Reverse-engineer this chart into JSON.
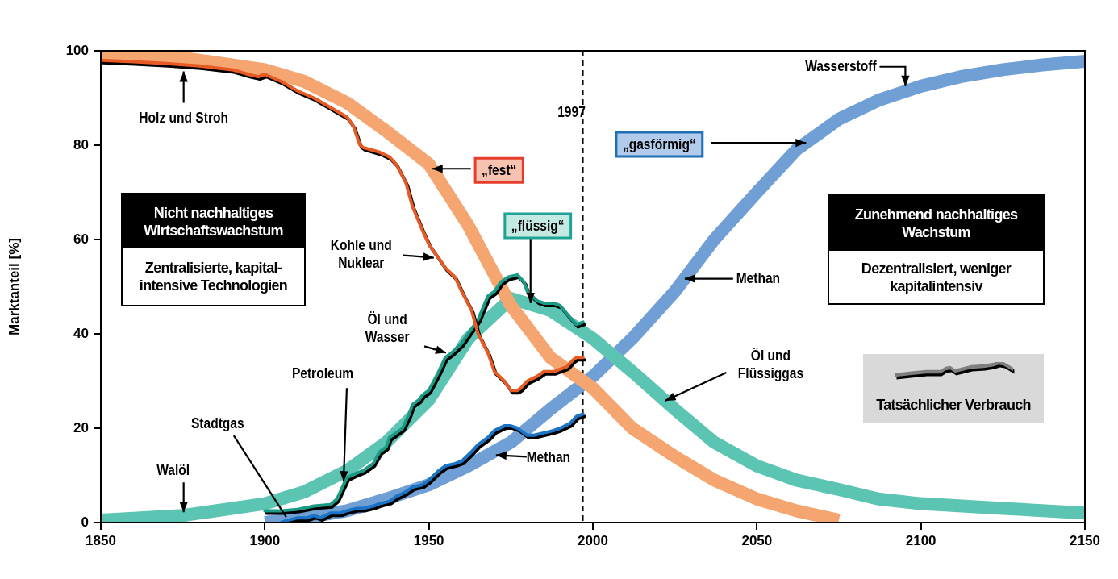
{
  "chart_data": {
    "type": "line",
    "ylabel": "Marktanteil [%]",
    "xlim": [
      1850,
      2150
    ],
    "ylim": [
      0,
      100
    ],
    "xticks": [
      1850,
      1900,
      1950,
      2000,
      2050,
      2100,
      2150
    ],
    "yticks": [
      0,
      20,
      40,
      60,
      80,
      100
    ],
    "series": [
      {
        "color": "#f5a570",
        "x": [
          1850,
          1875,
          1900,
          1912,
          1925,
          1937,
          1950,
          1962,
          1975,
          1987,
          2000,
          2012,
          2025,
          2037,
          2050,
          2062,
          2075
        ],
        "values": [
          99,
          98.5,
          96,
          93.5,
          89,
          83,
          76,
          63,
          46,
          35,
          28.5,
          20,
          14,
          9,
          5,
          2.5,
          0.5
        ]
      },
      {
        "color": "#5cc4b2",
        "x": [
          1850,
          1875,
          1900,
          1912,
          1925,
          1937,
          1950,
          1962,
          1975,
          1987,
          2000,
          2012,
          2025,
          2037,
          2050,
          2062,
          2075,
          2087,
          2100,
          2125,
          2150
        ],
        "values": [
          0.5,
          1.5,
          4,
          6.5,
          11,
          17,
          26,
          39,
          47.5,
          45,
          39,
          32,
          24,
          17,
          12,
          9,
          7,
          5,
          4,
          3,
          2
        ]
      },
      {
        "color": "#6f9fd5",
        "x": [
          1900,
          1912,
          1925,
          1937,
          1950,
          1962,
          1975,
          1987,
          2000,
          2012,
          2025,
          2037,
          2050,
          2062,
          2075,
          2087,
          2100,
          2112,
          2125,
          2137,
          2150
        ],
        "values": [
          0,
          1,
          2.5,
          5,
          8,
          12,
          17,
          24,
          31,
          39,
          49,
          60,
          70,
          79,
          85.5,
          89.5,
          92.5,
          94.5,
          96,
          97,
          97.8
        ]
      },
      {
        "color": "#e85a24",
        "x": [
          1850,
          1860,
          1870,
          1880,
          1890,
          1895,
          1898,
          1900,
          1905,
          1910,
          1915,
          1920,
          1925,
          1927,
          1929,
          1930,
          1935,
          1938,
          1940,
          1943,
          1945,
          1948,
          1950,
          1953,
          1955,
          1958,
          1960,
          1963,
          1965,
          1968,
          1970,
          1973,
          1975,
          1977,
          1978,
          1980,
          1983,
          1985,
          1988,
          1990,
          1992,
          1994,
          1995,
          1997
        ],
        "values": [
          98,
          97.7,
          97.3,
          96.8,
          96,
          95,
          94.5,
          95,
          93.5,
          91.5,
          90,
          88,
          86,
          84,
          80,
          79.5,
          78.5,
          77.5,
          76,
          72,
          67,
          62,
          59,
          56,
          54,
          52,
          49,
          45,
          40,
          36,
          32,
          30,
          28,
          28,
          28.5,
          30,
          31,
          32,
          32,
          32.5,
          33,
          34.5,
          35,
          35
        ]
      },
      {
        "color": "#1b9a86",
        "x": [
          1900,
          1905,
          1910,
          1915,
          1920,
          1922,
          1924,
          1925,
          1928,
          1930,
          1933,
          1935,
          1937,
          1938,
          1940,
          1942,
          1944,
          1945,
          1947,
          1948,
          1950,
          1953,
          1955,
          1957,
          1960,
          1963,
          1965,
          1968,
          1970,
          1972,
          1974,
          1977,
          1979,
          1980,
          1983,
          1985,
          1988,
          1990,
          1993,
          1995,
          1997
        ],
        "values": [
          2.5,
          2.5,
          2.8,
          3.5,
          3.8,
          5,
          8,
          9.5,
          10.5,
          11,
          12.5,
          15,
          16,
          18,
          19,
          20,
          23,
          25,
          26,
          27,
          28,
          32,
          35,
          36,
          38,
          41,
          43,
          48,
          49,
          51,
          52,
          52.5,
          51,
          49,
          47,
          46.5,
          46.5,
          46,
          43.5,
          42,
          42.5
        ]
      },
      {
        "color": "#1a73c4",
        "x": [
          1905,
          1907,
          1910,
          1913,
          1915,
          1917,
          1920,
          1923,
          1925,
          1928,
          1930,
          1933,
          1935,
          1938,
          1940,
          1943,
          1945,
          1948,
          1950,
          1953,
          1955,
          1958,
          1960,
          1963,
          1965,
          1968,
          1970,
          1973,
          1975,
          1977,
          1980,
          1982,
          1985,
          1988,
          1990,
          1993,
          1995,
          1997
        ],
        "values": [
          0,
          0.5,
          1,
          1,
          1.5,
          1,
          2,
          2,
          2.5,
          3,
          3,
          3.5,
          4,
          4.5,
          5.5,
          6.5,
          7.5,
          8,
          9,
          11,
          12,
          12.5,
          13,
          15,
          16.5,
          18,
          19.5,
          20.5,
          20.5,
          20,
          18.5,
          18.5,
          19,
          19.5,
          20,
          21,
          22.5,
          23
        ]
      }
    ],
    "ref_lines": [
      {
        "axis": "x",
        "value": 1997,
        "label": "1997",
        "line_style": "dashed"
      }
    ],
    "annotations": [
      {
        "text": "Holz und Stroh",
        "x": 1875,
        "y": 97
      },
      {
        "text": "Kohle und Nuklear",
        "x": 1952,
        "y": 57
      },
      {
        "text": "„fest“",
        "x": 1951,
        "y": 75
      },
      {
        "text": "„flüssig“",
        "x": 1981,
        "y": 46.5
      },
      {
        "text": "Öl und Wasser",
        "x": 1956,
        "y": 36
      },
      {
        "text": "Petroleum",
        "x": 1924,
        "y": 8
      },
      {
        "text": "Stadtgas",
        "x": 1907,
        "y": 0.5
      },
      {
        "text": "Walöl",
        "x": 1875,
        "y": 1.5
      },
      {
        "text": "Methan",
        "x": 1968,
        "y": 14.3
      },
      {
        "text": "Methan",
        "x": 2028,
        "y": 51.7
      },
      {
        "text": "Öl und Flüssiggas",
        "x": 2022,
        "y": 25.8
      },
      {
        "text": "„gasförmig“",
        "x": 2065,
        "y": 80.5
      },
      {
        "text": "Wasserstoff",
        "x": 2096,
        "y": 91.5
      },
      "Nicht nachhaltiges Wirtschaftswachstum",
      "Zentralisierte, kapital-intensive Technologien",
      "Zunehmend nachhaltiges Wachstum",
      "Dezentralisiert, weniger kapitalintensiv",
      "Tatsächlicher Verbrauch"
    ]
  }
}
